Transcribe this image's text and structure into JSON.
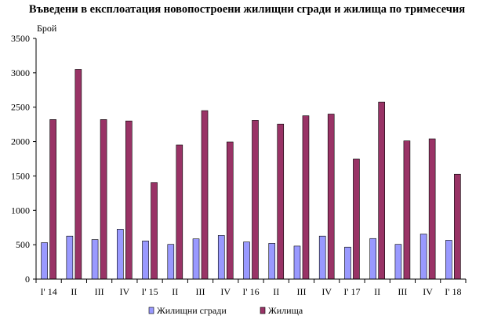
{
  "chart_data": {
    "type": "bar",
    "title": "Въведени в експлоатация новопостроени жилищни сгради и жилища по тримесечия",
    "ylabel": "Брой",
    "xlabel": "",
    "ylim": [
      0,
      3500
    ],
    "yticks": [
      0,
      500,
      1000,
      1500,
      2000,
      2500,
      3000,
      3500
    ],
    "grid": false,
    "legend_position": "bottom",
    "categories": [
      "I' 14",
      "II",
      "III",
      "IV",
      "I' 15",
      "II",
      "III",
      "IV",
      "I' 16",
      "II",
      "III",
      "IV",
      "I' 17",
      "II",
      "III",
      "IV",
      "I' 18"
    ],
    "series": [
      {
        "name": "Жилищни сгради",
        "color": "#9999ff",
        "values": [
          530,
          625,
          575,
          725,
          555,
          505,
          585,
          635,
          540,
          520,
          480,
          625,
          465,
          590,
          505,
          655,
          565
        ]
      },
      {
        "name": "Жилища",
        "color": "#993366",
        "values": [
          2320,
          3050,
          2320,
          2300,
          1405,
          1950,
          2450,
          1995,
          2310,
          2255,
          2375,
          2400,
          1745,
          2575,
          2010,
          2040,
          1525
        ]
      }
    ]
  }
}
